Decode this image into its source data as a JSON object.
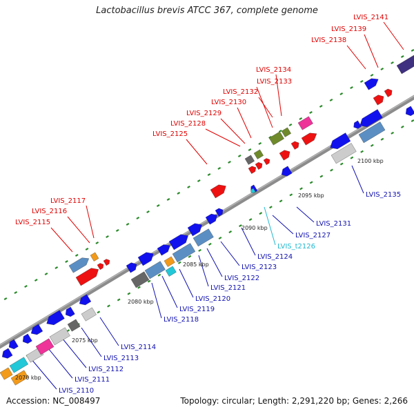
{
  "title": "Lactobacillus brevis ATCC 367, complete genome",
  "accession": "Accession: NC_008497",
  "topology": "Topology: circular; Length: 2,291,220 bp; Genes: 2,266",
  "kbp_labels": [
    "2070 kbp",
    "2075 kbp",
    "2080 kbp",
    "2085 kbp",
    "2090 kbp",
    "2095 kbp",
    "2100 kbp"
  ],
  "gene_labels": [
    {
      "text": "LVIS_2141",
      "color": "#e00000"
    },
    {
      "text": "LVIS_2139",
      "color": "#e00000"
    },
    {
      "text": "LVIS_2138",
      "color": "#e00000"
    },
    {
      "text": "LVIS_2134",
      "color": "#e00000"
    },
    {
      "text": "LVIS_2133",
      "color": "#e00000"
    },
    {
      "text": "LVIS_2132",
      "color": "#e00000"
    },
    {
      "text": "LVIS_2130",
      "color": "#e00000"
    },
    {
      "text": "LVIS_2129",
      "color": "#e00000"
    },
    {
      "text": "LVIS_2128",
      "color": "#e00000"
    },
    {
      "text": "LVIS_2125",
      "color": "#e00000"
    },
    {
      "text": "LVIS_2117",
      "color": "#e00000"
    },
    {
      "text": "LVIS_2116",
      "color": "#e00000"
    },
    {
      "text": "LVIS_2115",
      "color": "#e00000"
    },
    {
      "text": "LVIS_2135",
      "color": "#1010b0"
    },
    {
      "text": "LVIS_2131",
      "color": "#1010b0"
    },
    {
      "text": "LVIS_2127",
      "color": "#1010b0"
    },
    {
      "text": "LVIS_t2126",
      "color": "#20b8d0"
    },
    {
      "text": "LVIS_2124",
      "color": "#1010b0"
    },
    {
      "text": "LVIS_2123",
      "color": "#1010b0"
    },
    {
      "text": "LVIS_2122",
      "color": "#1010b0"
    },
    {
      "text": "LVIS_2121",
      "color": "#1010b0"
    },
    {
      "text": "LVIS_2120",
      "color": "#1010b0"
    },
    {
      "text": "LVIS_2119",
      "color": "#1010b0"
    },
    {
      "text": "LVIS_2118",
      "color": "#1010b0"
    },
    {
      "text": "LVIS_2114",
      "color": "#1010b0"
    },
    {
      "text": "LVIS_2113",
      "color": "#1010b0"
    },
    {
      "text": "LVIS_2112",
      "color": "#1010b0"
    },
    {
      "text": "LVIS_2111",
      "color": "#1010b0"
    },
    {
      "text": "LVIS_2110",
      "color": "#1010b0"
    }
  ],
  "colors": {
    "backbone": "#8c8c8c",
    "red": "#ee1111",
    "blue": "#1111ee",
    "steel": "#5b8fc4",
    "gray": "#666666",
    "lightgray": "#cccccc",
    "olive": "#6e8a2a",
    "pink": "#ee3399",
    "orange": "#f29a1a",
    "cyan": "#22c8d8",
    "purple": "#403080",
    "tick": "#2a8a2a"
  }
}
